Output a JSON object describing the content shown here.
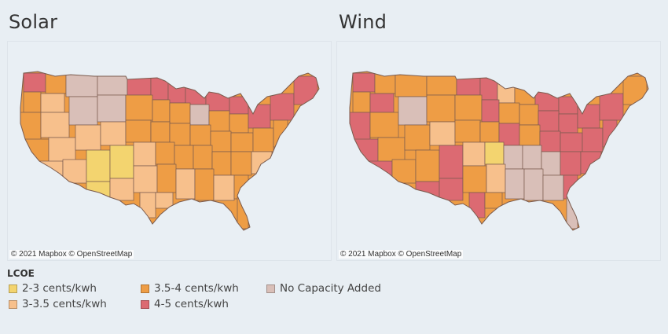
{
  "panels": [
    {
      "title": "Solar",
      "attribution": "© 2021 Mapbox © OpenStreetMap"
    },
    {
      "title": "Wind",
      "attribution": "© 2021 Mapbox © OpenStreetMap"
    }
  ],
  "legend": {
    "title": "LCOE",
    "items": [
      {
        "label": "2-3 cents/kwh",
        "color": "#f3d46f"
      },
      {
        "label": "3-3.5 cents/kwh",
        "color": "#f7c08c"
      },
      {
        "label": "3.5-4 cents/kwh",
        "color": "#ee9d45"
      },
      {
        "label": "4-5 cents/kwh",
        "color": "#dc6a72"
      },
      {
        "label": "No Capacity Added",
        "color": "#d9bfb8"
      }
    ]
  },
  "colors": {
    "a": "#f3d46f",
    "b": "#f7c08c",
    "c": "#ee9d45",
    "d": "#dc6a72",
    "n": "#d9bfb8",
    "outline": "#7a5b4e"
  }
}
